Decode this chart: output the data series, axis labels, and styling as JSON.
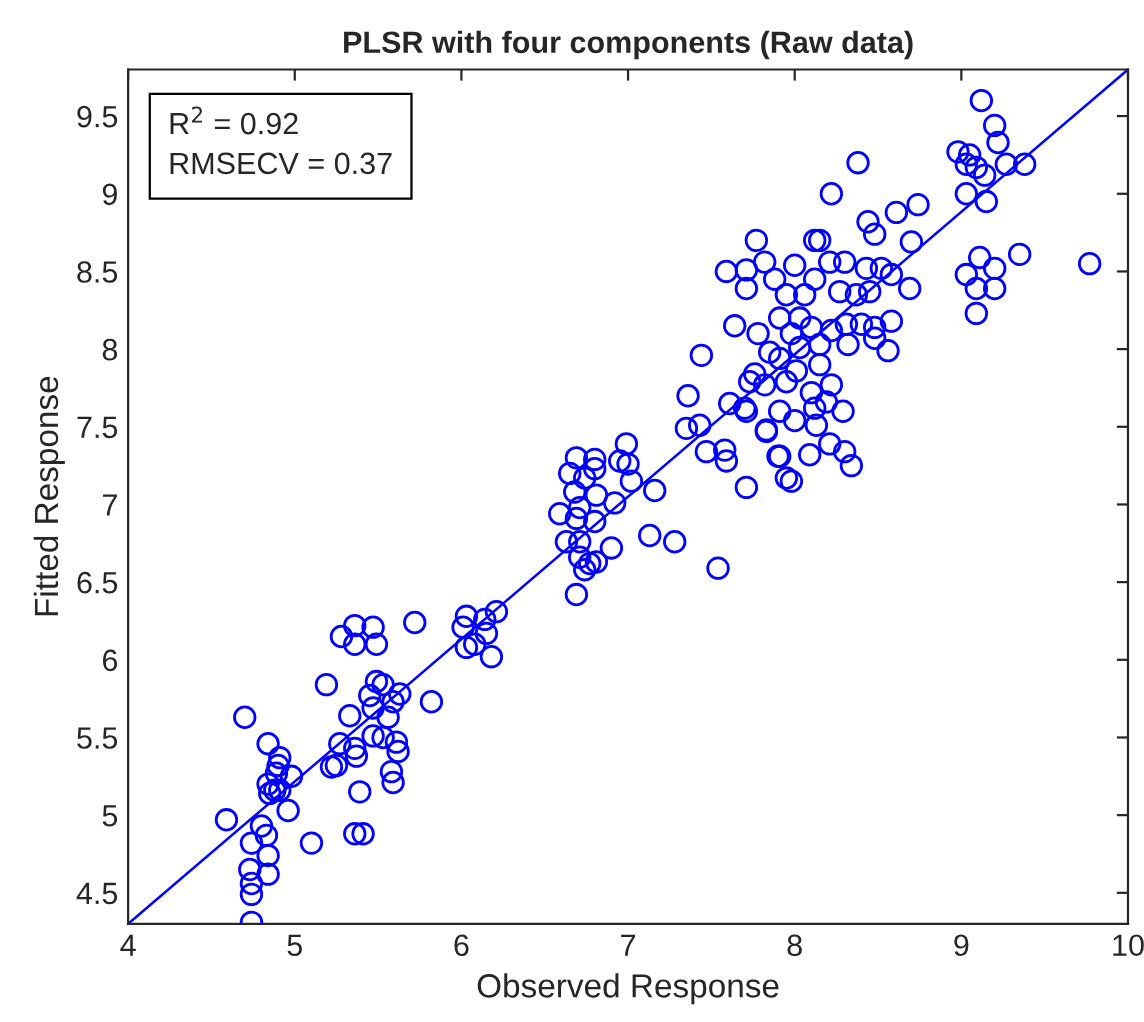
{
  "chart_data": {
    "type": "scatter",
    "title": "PLSR with four components (Raw data)",
    "xlabel": "Observed Response",
    "ylabel": "Fitted Response",
    "xlim": [
      4,
      10
    ],
    "ylim": [
      4.3,
      9.8
    ],
    "xticks": [
      4,
      5,
      6,
      7,
      8,
      9,
      10
    ],
    "yticks": [
      4.5,
      5,
      5.5,
      6,
      6.5,
      7,
      7.5,
      8,
      8.5,
      9,
      9.5
    ],
    "grid": false,
    "legend": false,
    "annotations": [
      "R$^{2}$ = 0.92",
      "RMSECV = 0.37"
    ],
    "series": [
      {
        "color": "#0000ff",
        "marker": "circle",
        "x": [
          4.59,
          4.7,
          4.74,
          4.73,
          4.74,
          4.74,
          4.74,
          4.8,
          4.83,
          4.84,
          4.84,
          4.84,
          4.91,
          4.9,
          4.89,
          4.84,
          4.88,
          4.85,
          4.91,
          4.98,
          4.96,
          5.1,
          5.36,
          5.41,
          5.19,
          5.33,
          5.27,
          5.22,
          5.25,
          5.37,
          5.36,
          5.39,
          5.28,
          5.36,
          5.36,
          5.47,
          5.49,
          5.72,
          5.45,
          5.49,
          5.53,
          5.47,
          5.56,
          5.63,
          5.59,
          5.47,
          5.53,
          5.61,
          5.62,
          5.58,
          5.59,
          5.82,
          6.03,
          6.01,
          6.03,
          6.08,
          6.14,
          6.15,
          6.21,
          6.18,
          6.69,
          6.8,
          6.99,
          6.95,
          7.0,
          6.65,
          6.74,
          6.8,
          6.68,
          6.81,
          7.02,
          6.59,
          6.69,
          6.71,
          6.8,
          6.92,
          7.16,
          6.63,
          6.71,
          6.9,
          6.71,
          6.77,
          6.81,
          6.74,
          6.69,
          7.13,
          7.28,
          7.54,
          7.35,
          7.43,
          7.47,
          7.58,
          7.59,
          7.71,
          7.83,
          7.9,
          7.95,
          7.98,
          9.2,
          9.22,
          8.98,
          9.05,
          9.03,
          9.09,
          9.14,
          9.27,
          9.38,
          9.03,
          9.15,
          8.38,
          8.22,
          8.74,
          8.61,
          8.44,
          8.48,
          8.7,
          7.77,
          8.12,
          8.15,
          9.03,
          9.11,
          9.2,
          9.09,
          9.2,
          9.09,
          9.35,
          9.77,
          7.59,
          7.71,
          7.82,
          7.71,
          7.88,
          8.0,
          8.12,
          8.21,
          8.3,
          8.43,
          8.52,
          8.58,
          8.69,
          8.27,
          8.37,
          8.45,
          7.95,
          8.06,
          7.91,
          8.03,
          7.64,
          7.78,
          7.98,
          8.1,
          8.22,
          8.31,
          8.4,
          8.48,
          8.58,
          8.48,
          8.32,
          8.56,
          8.15,
          8.03,
          7.85,
          7.91,
          7.44,
          8.01,
          7.76,
          7.73,
          7.82,
          7.95,
          8.15,
          8.22,
          8.1,
          7.36,
          7.61,
          7.7,
          7.71,
          7.91,
          8.12,
          8.19,
          8.29,
          8.0,
          8.13,
          7.83,
          7.91,
          8.09,
          8.21,
          8.3,
          8.34,
          9.12
        ],
        "values": [
          4.97,
          5.63,
          4.31,
          4.65,
          4.56,
          4.49,
          4.82,
          4.93,
          4.87,
          4.74,
          4.62,
          5.46,
          5.37,
          5.32,
          5.27,
          5.2,
          5.16,
          5.14,
          5.16,
          5.25,
          5.03,
          4.82,
          4.88,
          4.88,
          5.84,
          5.64,
          5.46,
          5.31,
          5.32,
          5.38,
          5.43,
          5.15,
          6.15,
          6.22,
          6.1,
          6.21,
          6.1,
          6.24,
          5.77,
          5.86,
          5.84,
          5.69,
          5.63,
          5.78,
          5.73,
          5.51,
          5.5,
          5.47,
          5.41,
          5.28,
          5.21,
          5.73,
          6.28,
          6.21,
          6.08,
          6.1,
          6.26,
          6.17,
          6.31,
          6.02,
          7.3,
          7.29,
          7.39,
          7.28,
          7.26,
          7.2,
          7.17,
          7.23,
          7.08,
          7.06,
          7.15,
          6.94,
          6.91,
          6.98,
          6.89,
          7.01,
          7.09,
          6.76,
          6.76,
          6.72,
          6.66,
          6.62,
          6.63,
          6.58,
          6.42,
          6.8,
          6.76,
          6.59,
          7.49,
          7.51,
          7.34,
          7.35,
          7.28,
          7.11,
          7.47,
          7.31,
          7.17,
          7.15,
          9.44,
          9.33,
          9.27,
          9.25,
          9.19,
          9.17,
          9.12,
          9.19,
          9.19,
          9.0,
          8.95,
          9.2,
          9.0,
          8.93,
          8.88,
          8.82,
          8.74,
          8.69,
          8.7,
          8.7,
          8.7,
          8.48,
          8.59,
          8.52,
          8.39,
          8.39,
          8.23,
          8.61,
          8.55,
          8.5,
          8.51,
          8.56,
          8.39,
          8.45,
          8.54,
          8.45,
          8.56,
          8.56,
          8.52,
          8.52,
          8.48,
          8.39,
          8.37,
          8.35,
          8.37,
          8.35,
          8.35,
          8.2,
          8.2,
          8.15,
          8.1,
          8.1,
          8.14,
          8.12,
          8.16,
          8.16,
          8.14,
          8.18,
          8.07,
          8.03,
          7.99,
          8.03,
          8.01,
          7.98,
          7.94,
          7.96,
          7.86,
          7.84,
          7.79,
          7.77,
          7.79,
          7.9,
          7.77,
          7.72,
          7.7,
          7.65,
          7.62,
          7.6,
          7.6,
          7.62,
          7.66,
          7.6,
          7.54,
          7.51,
          7.48,
          7.31,
          7.32,
          7.39,
          7.34,
          7.25,
          9.6
        ]
      },
      {
        "type": "line",
        "color": "#0000ff",
        "x": [
          4,
          10
        ],
        "values": [
          4.3,
          9.8
        ]
      }
    ]
  }
}
